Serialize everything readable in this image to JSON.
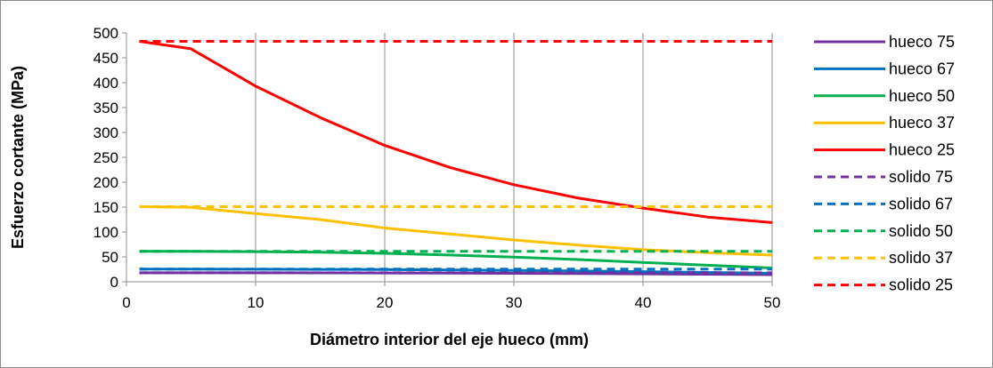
{
  "chart_data": {
    "type": "line",
    "title": "",
    "xlabel": "Diámetro interior del eje hueco (mm)",
    "ylabel": "Esfuerzo cortante (MPa)",
    "xlim": [
      0,
      50
    ],
    "ylim": [
      0,
      500
    ],
    "xticks": [
      0,
      10,
      20,
      30,
      40,
      50
    ],
    "yticks": [
      0,
      50,
      100,
      150,
      200,
      250,
      300,
      350,
      400,
      450,
      500
    ],
    "grid": "vertical",
    "legend_position": "right",
    "x": [
      1,
      5,
      10,
      15,
      20,
      25,
      30,
      35,
      40,
      45,
      50
    ],
    "series": [
      {
        "name": "hueco 75",
        "color": "#7030a0",
        "dash": "solid",
        "values": [
          18.1,
          18.1,
          18.0,
          17.9,
          17.7,
          17.4,
          17.0,
          16.5,
          15.9,
          15.2,
          14.3
        ]
      },
      {
        "name": "hueco 67",
        "color": "#0070c0",
        "dash": "solid",
        "values": [
          25.4,
          25.4,
          25.2,
          24.9,
          24.4,
          23.7,
          22.8,
          21.6,
          20.3,
          18.8,
          17.2
        ]
      },
      {
        "name": "hueco 50",
        "color": "#00b050",
        "dash": "solid",
        "values": [
          61.1,
          61.0,
          60.6,
          59.4,
          57.2,
          53.8,
          49.7,
          44.6,
          39.0,
          33.3,
          27.6
        ]
      },
      {
        "name": "hueco 37",
        "color": "#ffc000",
        "dash": "solid",
        "values": [
          150.9,
          149.5,
          137.0,
          125.0,
          108.0,
          96.0,
          84.0,
          73.5,
          64.5,
          58.5,
          53.5
        ]
      },
      {
        "name": "hueco 25",
        "color": "#ff0000",
        "dash": "solid",
        "values": [
          483.0,
          468.0,
          393.0,
          330.0,
          274.0,
          230.0,
          195.0,
          168.0,
          148.0,
          130.0,
          119.0
        ]
      },
      {
        "name": "solido 75",
        "color": "#7030a0",
        "dash": "dashed",
        "values": [
          18.1,
          18.1,
          18.1,
          18.1,
          18.1,
          18.1,
          18.1,
          18.1,
          18.1,
          18.1,
          18.1
        ]
      },
      {
        "name": "solido 67",
        "color": "#0070c0",
        "dash": "dashed",
        "values": [
          25.4,
          25.4,
          25.4,
          25.4,
          25.4,
          25.4,
          25.4,
          25.4,
          25.4,
          25.4,
          25.4
        ]
      },
      {
        "name": "solido 50",
        "color": "#00b050",
        "dash": "dashed",
        "values": [
          61.1,
          61.1,
          61.1,
          61.1,
          61.1,
          61.1,
          61.1,
          61.1,
          61.1,
          61.1,
          61.1
        ]
      },
      {
        "name": "solido 37",
        "color": "#ffc000",
        "dash": "dashed",
        "values": [
          150.9,
          150.9,
          150.9,
          150.9,
          150.9,
          150.9,
          150.9,
          150.9,
          150.9,
          150.9,
          150.9
        ]
      },
      {
        "name": "solido 25",
        "color": "#ff0000",
        "dash": "dashed",
        "values": [
          483.0,
          483.0,
          483.0,
          483.0,
          483.0,
          483.0,
          483.0,
          483.0,
          483.0,
          483.0,
          483.0
        ]
      }
    ]
  }
}
